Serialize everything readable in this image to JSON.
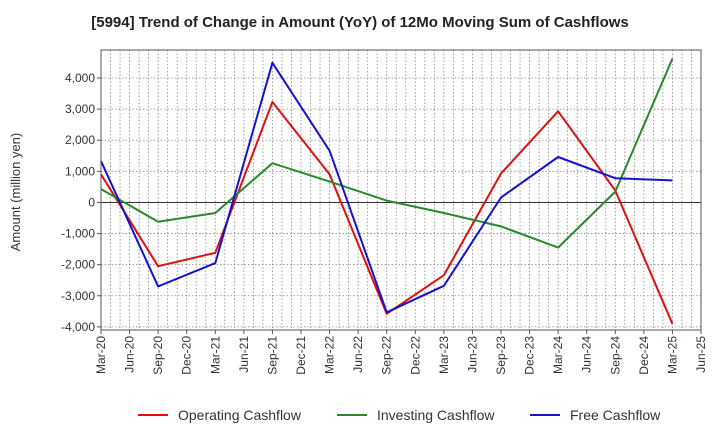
{
  "chart_data": {
    "type": "line",
    "title": "[5994]  Trend of Change in Amount (YoY) of 12Mo Moving Sum of Cashflows",
    "xlabel": "",
    "ylabel": "Amount (million yen)",
    "ylim": [
      -4100,
      4900
    ],
    "yticks": [
      4000,
      3000,
      2000,
      1000,
      0,
      -1000,
      -2000,
      -3000,
      -4000
    ],
    "ytick_labels": [
      "4,000",
      "3,000",
      "2,000",
      "1,000",
      "0",
      "-1,000",
      "-2,000",
      "-3,000",
      "-4,000"
    ],
    "categories": [
      "Mar-20",
      "Jun-20",
      "Sep-20",
      "Dec-20",
      "Mar-21",
      "Jun-21",
      "Sep-21",
      "Dec-21",
      "Mar-22",
      "Jun-22",
      "Sep-22",
      "Dec-22",
      "Mar-23",
      "Jun-23",
      "Sep-23",
      "Dec-23",
      "Mar-24",
      "Jun-24",
      "Sep-24",
      "Dec-24",
      "Mar-25",
      "Jun-25"
    ],
    "grid": true,
    "legend_position": "bottom",
    "series": [
      {
        "name": "Operating Cashflow",
        "color": "#dd1111",
        "values": [
          900,
          null,
          -2050,
          null,
          -1620,
          null,
          3230,
          null,
          900,
          null,
          -3580,
          null,
          -2340,
          null,
          930,
          null,
          2930,
          null,
          380,
          null,
          -3900,
          null
        ]
      },
      {
        "name": "Investing Cashflow",
        "color": "#2a8a2a",
        "values": [
          430,
          null,
          -620,
          null,
          -340,
          null,
          1260,
          null,
          670,
          null,
          60,
          null,
          -340,
          null,
          -770,
          null,
          -1450,
          null,
          350,
          null,
          4620,
          null
        ]
      },
      {
        "name": "Free Cashflow",
        "color": "#1414cc",
        "values": [
          1330,
          null,
          -2700,
          null,
          -1950,
          null,
          4490,
          null,
          1660,
          null,
          -3530,
          null,
          -2680,
          null,
          160,
          null,
          1460,
          null,
          780,
          null,
          710,
          null
        ]
      }
    ]
  }
}
